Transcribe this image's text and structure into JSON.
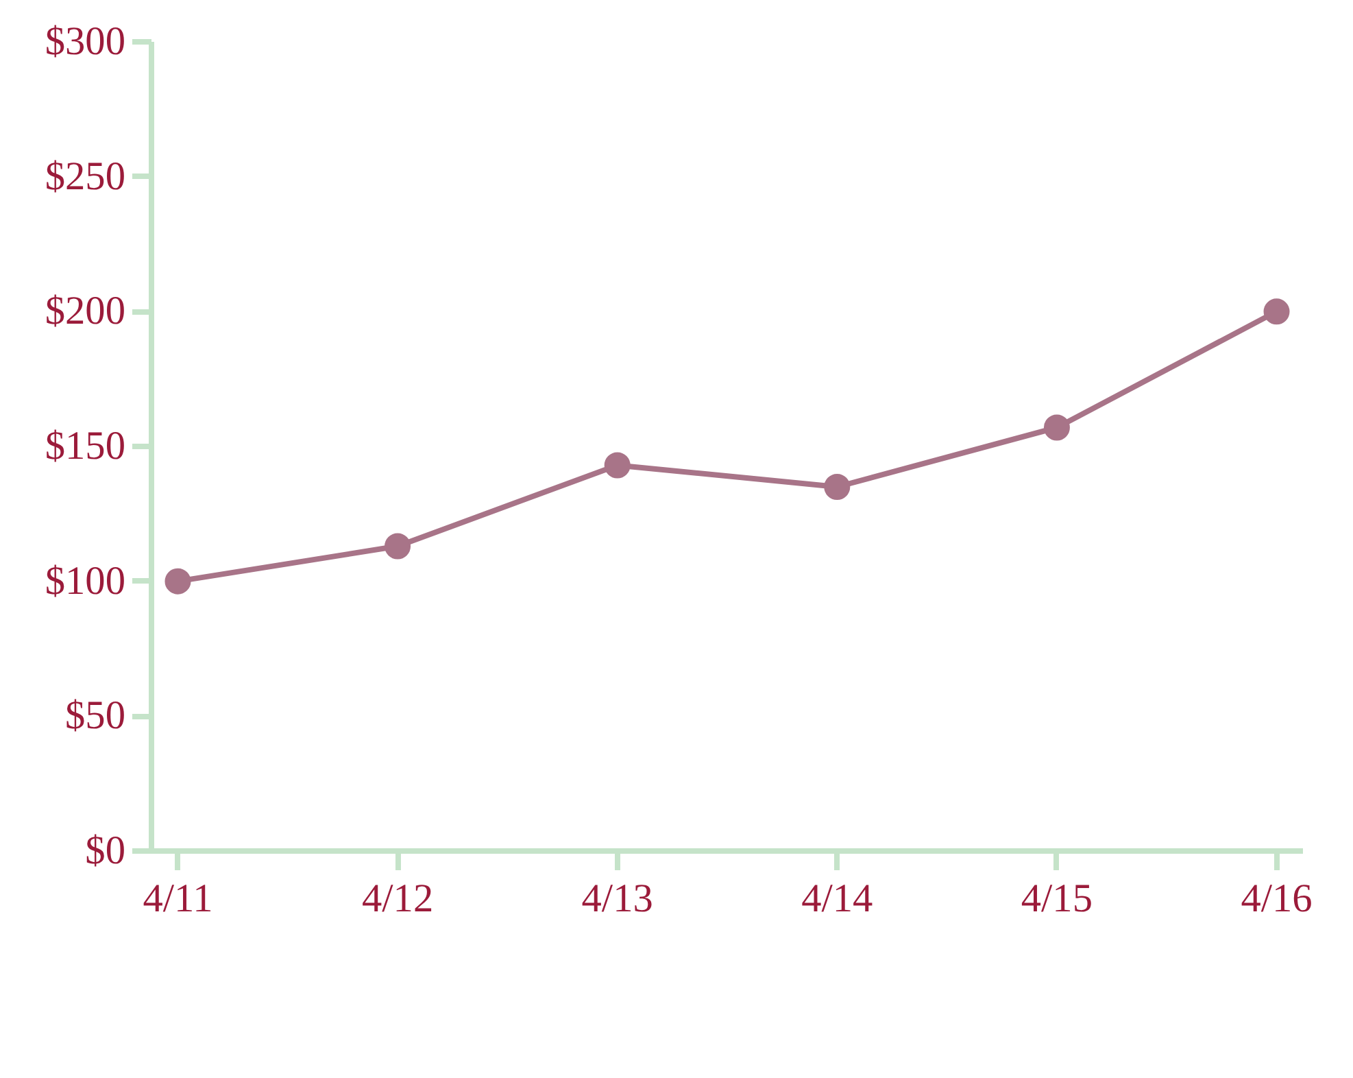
{
  "chart_data": {
    "type": "line",
    "categories": [
      "4/11",
      "4/12",
      "4/13",
      "4/14",
      "4/15",
      "4/16"
    ],
    "series": [
      {
        "color": "#a87488",
        "values": [
          100,
          113,
          143,
          135,
          157,
          200
        ]
      }
    ],
    "ylim": [
      0,
      300
    ],
    "yticks": [
      {
        "value": 0,
        "label": "$0"
      },
      {
        "value": 50,
        "label": "$50"
      },
      {
        "value": 100,
        "label": "$100"
      },
      {
        "value": 150,
        "label": "$150"
      },
      {
        "value": 200,
        "label": "$200"
      },
      {
        "value": 250,
        "label": "$250"
      },
      {
        "value": 300,
        "label": "$300"
      }
    ],
    "grid": false,
    "marker": "circle",
    "line_style": "solid"
  }
}
